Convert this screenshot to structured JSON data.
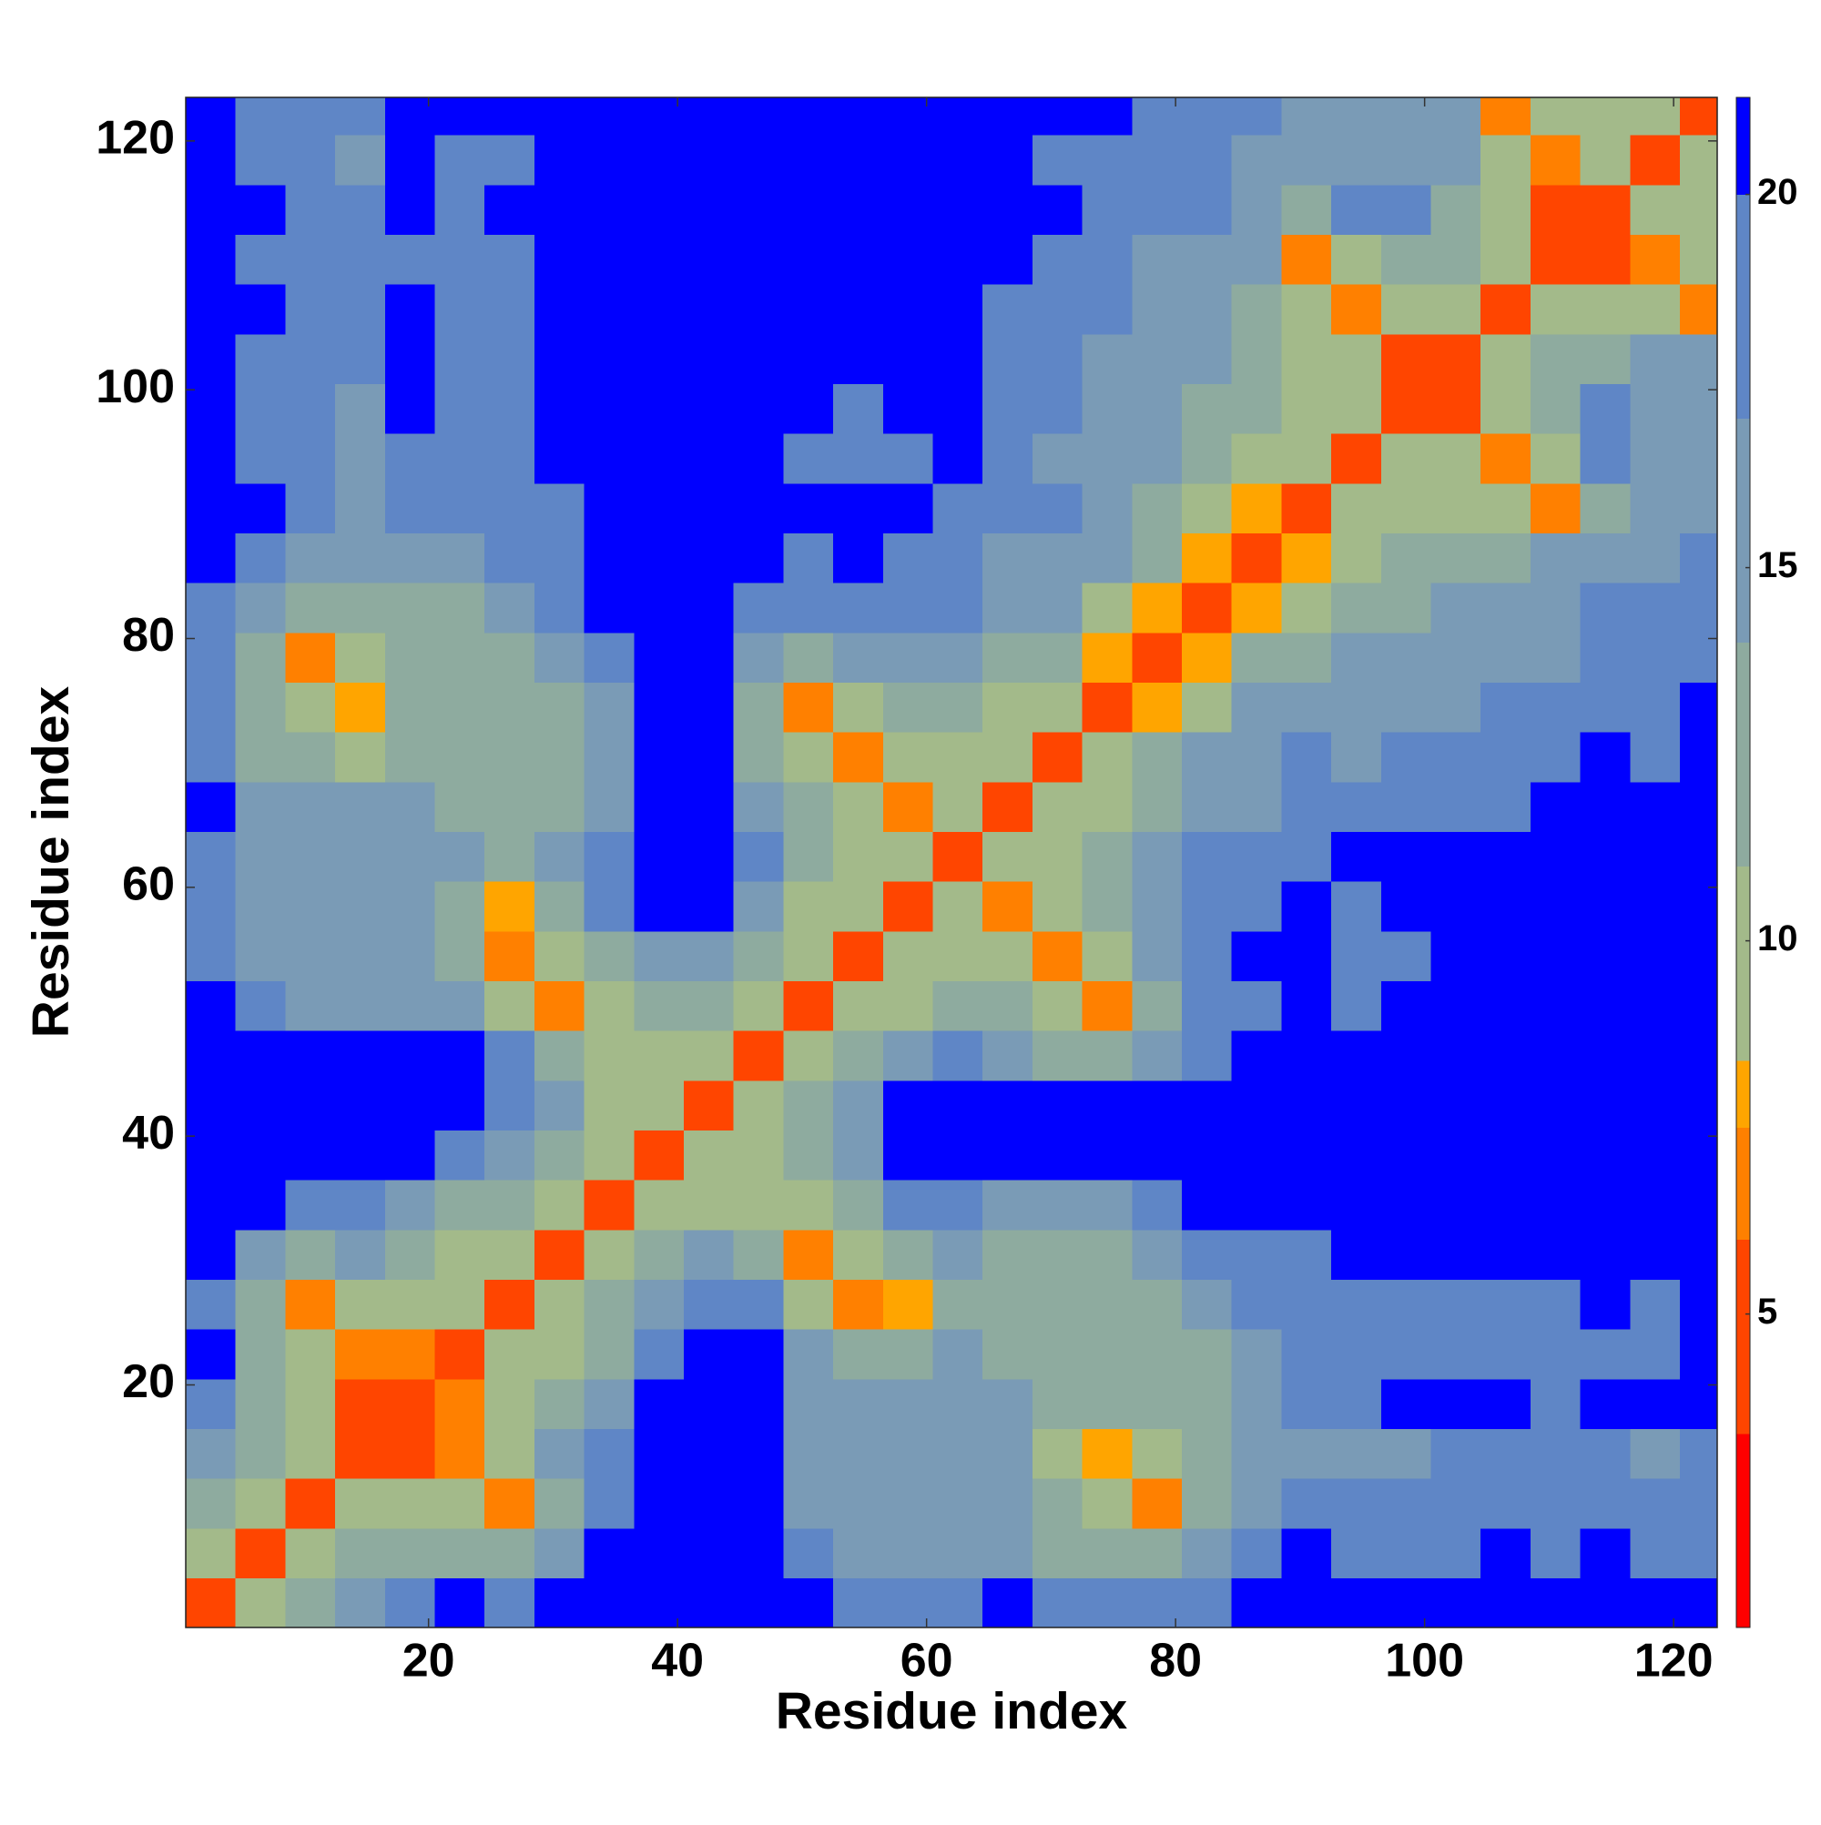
{
  "chart_data": {
    "type": "heatmap",
    "x_label": "Residue index",
    "y_label": "Residue index",
    "xlim": [
      0.5,
      123.5
    ],
    "ylim": [
      0.5,
      123.5
    ],
    "xticks": [
      20,
      40,
      60,
      80,
      100,
      120
    ],
    "yticks": [
      20,
      40,
      60,
      80,
      100,
      120
    ],
    "xbins": [
      0.5,
      4.5,
      8.5,
      12.5,
      16.5,
      20.5,
      24.5,
      28.5,
      32.5,
      36.5,
      40.5,
      44.5,
      48.5,
      52.5,
      56.5,
      60.5,
      64.5,
      68.5,
      72.5,
      76.5,
      80.5,
      84.5,
      88.5,
      92.5,
      96.5,
      100.5,
      104.5,
      108.5,
      112.5,
      116.5,
      120.5,
      123.5
    ],
    "ybins": [
      0.5,
      4.5,
      8.5,
      12.5,
      16.5,
      20.5,
      24.5,
      28.5,
      32.5,
      36.5,
      40.5,
      44.5,
      48.5,
      52.5,
      56.5,
      60.5,
      64.5,
      68.5,
      72.5,
      76.5,
      80.5,
      84.5,
      88.5,
      92.5,
      96.5,
      100.5,
      104.5,
      108.5,
      112.5,
      116.5,
      120.5,
      123.5
    ],
    "clim": [
      0.8,
      21.3
    ],
    "cticks": [
      5,
      10,
      15,
      20
    ],
    "colorscale": [
      {
        "max": 3.4,
        "color": "#ff0000"
      },
      {
        "max": 6,
        "color": "#ff4500"
      },
      {
        "max": 7.5,
        "color": "#ff8000"
      },
      {
        "max": 8.4,
        "color": "#ffa500"
      },
      {
        "max": 11,
        "color": "#a3ba8a"
      },
      {
        "max": 14,
        "color": "#8eab9f"
      },
      {
        "max": 17,
        "color": "#7a9bb6"
      },
      {
        "max": 20,
        "color": "#5f86c6"
      },
      {
        "max": 21.3,
        "color": "#0000ff"
      }
    ],
    "z": [
      [
        4,
        9,
        13,
        16,
        19,
        21,
        18,
        21,
        21,
        21,
        21,
        21,
        21,
        19,
        19,
        19,
        21,
        19,
        18,
        18,
        19,
        21,
        21,
        21,
        21,
        21,
        21,
        21,
        21,
        21,
        21
      ],
      [
        9,
        4,
        10,
        12,
        14,
        14,
        13,
        17,
        21,
        21,
        21,
        21,
        19,
        16,
        16,
        17,
        16,
        14,
        13,
        12,
        15,
        19,
        21,
        19,
        19,
        19,
        21,
        19,
        21,
        19,
        19
      ],
      [
        13,
        10,
        4,
        10,
        11,
        11,
        7,
        14,
        19,
        21,
        21,
        21,
        17,
        15,
        16,
        17,
        16,
        12,
        11,
        7,
        13,
        17,
        18,
        18,
        19,
        18,
        19,
        18,
        19,
        18,
        19
      ],
      [
        16,
        12,
        10,
        4,
        5,
        7,
        11,
        15,
        19,
        21,
        21,
        21,
        16,
        15,
        15,
        17,
        15,
        11,
        8,
        9,
        13,
        16,
        17,
        16,
        17,
        18,
        18,
        18,
        19,
        17,
        18
      ],
      [
        19,
        14,
        11,
        5,
        4,
        7,
        10,
        12,
        17,
        21,
        21,
        21,
        17,
        15,
        15,
        17,
        15,
        13,
        12,
        12,
        14,
        17,
        19,
        19,
        21,
        21,
        21,
        19,
        21,
        21,
        21
      ],
      [
        21,
        14,
        11,
        7,
        7,
        4,
        9,
        10,
        14,
        19,
        21,
        21,
        15,
        13,
        12,
        16,
        14,
        12,
        12,
        12,
        14,
        17,
        18,
        18,
        19,
        18,
        18,
        18,
        19,
        19,
        21
      ],
      [
        18,
        13,
        7,
        11,
        10,
        9,
        4,
        10,
        12,
        16,
        19,
        19,
        11,
        7,
        8,
        13,
        13,
        12,
        13,
        14,
        16,
        18,
        19,
        19,
        18,
        19,
        18,
        19,
        21,
        19,
        21
      ],
      [
        21,
        17,
        14,
        15,
        12,
        10,
        10,
        4,
        10,
        13,
        16,
        12,
        7,
        11,
        14,
        15,
        13,
        14,
        14,
        16,
        18,
        19,
        19,
        21,
        21,
        21,
        21,
        21,
        21,
        21,
        21
      ],
      [
        21,
        21,
        19,
        19,
        17,
        14,
        12,
        10,
        4,
        10,
        11,
        11,
        9,
        14,
        18,
        19,
        17,
        16,
        17,
        19,
        21,
        21,
        21,
        21,
        21,
        21,
        21,
        21,
        21,
        21,
        21
      ],
      [
        21,
        21,
        21,
        21,
        21,
        19,
        16,
        13,
        10,
        4,
        10,
        11,
        13,
        17,
        21,
        21,
        21,
        21,
        21,
        21,
        21,
        21,
        21,
        21,
        21,
        21,
        21,
        21,
        21,
        21,
        21
      ],
      [
        21,
        21,
        21,
        21,
        21,
        21,
        19,
        16,
        11,
        10,
        4,
        10,
        12,
        16,
        21,
        21,
        21,
        21,
        21,
        21,
        21,
        21,
        21,
        21,
        21,
        21,
        21,
        21,
        21,
        21,
        21
      ],
      [
        21,
        21,
        21,
        21,
        21,
        21,
        19,
        12,
        11,
        11,
        10,
        4,
        10,
        12,
        15,
        18,
        17,
        14,
        14,
        16,
        19,
        21,
        21,
        21,
        21,
        21,
        21,
        21,
        21,
        21,
        21
      ],
      [
        21,
        19,
        17,
        16,
        17,
        15,
        11,
        7,
        9,
        13,
        12,
        10,
        4,
        10,
        11,
        13,
        14,
        11,
        7,
        14,
        18,
        19,
        21,
        19,
        21,
        21,
        21,
        21,
        21,
        21,
        21
      ],
      [
        19,
        16,
        15,
        15,
        15,
        13,
        7,
        11,
        14,
        17,
        16,
        12,
        10,
        4,
        10,
        10,
        10,
        7,
        11,
        15,
        19,
        21,
        21,
        19,
        19,
        21,
        21,
        21,
        21,
        21,
        21
      ],
      [
        19,
        16,
        16,
        15,
        15,
        12,
        8,
        14,
        18,
        21,
        21,
        15,
        11,
        10,
        4,
        10,
        7,
        10,
        12,
        15,
        18,
        19,
        21,
        19,
        21,
        21,
        21,
        21,
        21,
        21,
        21
      ],
      [
        19,
        17,
        17,
        17,
        17,
        16,
        13,
        15,
        19,
        21,
        21,
        18,
        13,
        10,
        10,
        4,
        10,
        10,
        13,
        16,
        18,
        18,
        19,
        21,
        21,
        21,
        21,
        21,
        21,
        21,
        21
      ],
      [
        21,
        16,
        16,
        15,
        15,
        14,
        13,
        13,
        17,
        21,
        21,
        17,
        14,
        10,
        7,
        10,
        4,
        10,
        11,
        14,
        16,
        17,
        18,
        18,
        19,
        19,
        19,
        21,
        21,
        21,
        21
      ],
      [
        19,
        14,
        12,
        11,
        13,
        12,
        12,
        14,
        16,
        21,
        21,
        14,
        11,
        7,
        10,
        10,
        10,
        4,
        9,
        12,
        15,
        17,
        18,
        17,
        18,
        19,
        19,
        19,
        21,
        19,
        21
      ],
      [
        18,
        13,
        11,
        8,
        12,
        12,
        13,
        14,
        17,
        21,
        21,
        14,
        7,
        11,
        12,
        13,
        11,
        9,
        4,
        8,
        11,
        15,
        16,
        17,
        17,
        17,
        18,
        19,
        19,
        19,
        21
      ],
      [
        18,
        12,
        7,
        9,
        12,
        12,
        14,
        16,
        19,
        21,
        21,
        16,
        14,
        15,
        15,
        16,
        14,
        12,
        8,
        4,
        8,
        12,
        14,
        15,
        15,
        16,
        17,
        17,
        18,
        19,
        18
      ],
      [
        19,
        15,
        13,
        13,
        14,
        14,
        16,
        18,
        21,
        21,
        21,
        19,
        18,
        19,
        18,
        18,
        16,
        15,
        11,
        8,
        4,
        8,
        10,
        12,
        14,
        15,
        16,
        17,
        18,
        18,
        19
      ],
      [
        21,
        19,
        17,
        16,
        17,
        17,
        18,
        19,
        21,
        21,
        21,
        21,
        19,
        21,
        19,
        18,
        17,
        17,
        15,
        12,
        8,
        4,
        8,
        10,
        12,
        13,
        14,
        15,
        16,
        17,
        18
      ],
      [
        21,
        21,
        18,
        17,
        19,
        18,
        19,
        19,
        21,
        21,
        21,
        21,
        21,
        21,
        21,
        19,
        18,
        18,
        16,
        14,
        10,
        8,
        4,
        9,
        10,
        11,
        11,
        7,
        13,
        16,
        17
      ],
      [
        21,
        19,
        18,
        16,
        19,
        18,
        19,
        21,
        21,
        21,
        21,
        21,
        19,
        19,
        19,
        21,
        18,
        17,
        17,
        15,
        12,
        10,
        9,
        4,
        9,
        10,
        7,
        11,
        20,
        15,
        16
      ],
      [
        21,
        19,
        19,
        17,
        21,
        19,
        18,
        21,
        21,
        21,
        21,
        21,
        21,
        19,
        21,
        21,
        19,
        18,
        17,
        15,
        14,
        12,
        10,
        9,
        4,
        6,
        10,
        13,
        18,
        16,
        15
      ],
      [
        21,
        19,
        18,
        18,
        21,
        18,
        19,
        21,
        21,
        21,
        21,
        21,
        21,
        21,
        21,
        21,
        19,
        19,
        17,
        16,
        15,
        13,
        11,
        10,
        6,
        4,
        9,
        12,
        14,
        16,
        17
      ],
      [
        21,
        21,
        19,
        18,
        21,
        18,
        18,
        21,
        21,
        21,
        21,
        21,
        21,
        21,
        21,
        21,
        19,
        19,
        18,
        17,
        16,
        14,
        11,
        7,
        10,
        9,
        4,
        9,
        11,
        10,
        7
      ],
      [
        21,
        19,
        18,
        18,
        19,
        18,
        19,
        21,
        21,
        21,
        21,
        21,
        21,
        21,
        21,
        21,
        21,
        19,
        19,
        17,
        17,
        15,
        7,
        11,
        13,
        12,
        9,
        4,
        6,
        7,
        10
      ],
      [
        21,
        21,
        19,
        19,
        21,
        19,
        21,
        21,
        21,
        21,
        21,
        21,
        21,
        21,
        21,
        21,
        21,
        21,
        19,
        18,
        18,
        16,
        13,
        20,
        18,
        14,
        11,
        6,
        4,
        9,
        11
      ],
      [
        21,
        19,
        18,
        17,
        21,
        19,
        19,
        21,
        21,
        21,
        21,
        21,
        21,
        21,
        21,
        21,
        21,
        19,
        19,
        19,
        18,
        17,
        16,
        15,
        16,
        16,
        10,
        7,
        9,
        4,
        9
      ],
      [
        21,
        19,
        19,
        18,
        21,
        21,
        21,
        21,
        21,
        21,
        21,
        21,
        21,
        21,
        21,
        21,
        21,
        21,
        21,
        18,
        19,
        18,
        17,
        16,
        15,
        17,
        7,
        10,
        11,
        9,
        4
      ]
    ]
  }
}
